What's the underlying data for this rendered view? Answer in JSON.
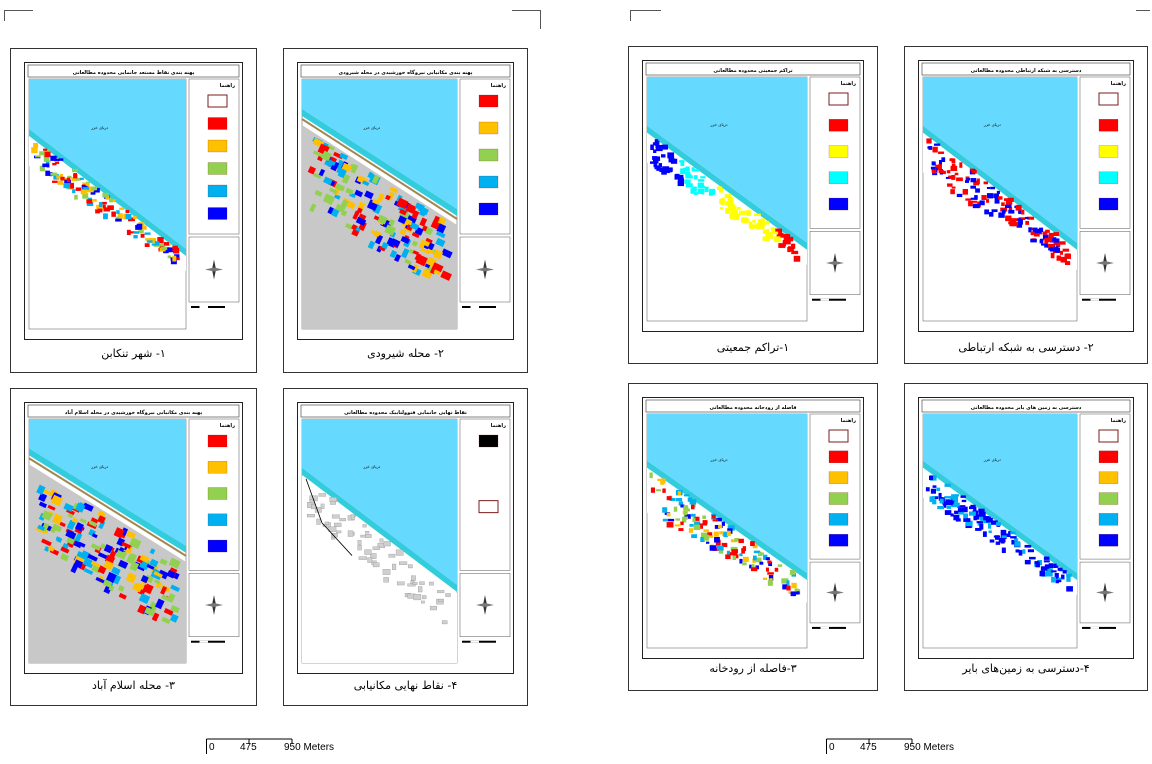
{
  "maps": [
    {
      "id": "tonekabon",
      "caption": "۱- شهر تنکابن",
      "title": "پهنه بندی نقاط مستعد جانمایی محدوده مطالعاتی",
      "legend_title": "راهنما",
      "style": "dots",
      "legend_colors": [
        "#ffffff",
        "#ff0000",
        "#ffc000",
        "#92d050",
        "#00b0f0",
        "#0000ff"
      ]
    },
    {
      "id": "shirudi",
      "caption": "۲- محله شیرودی",
      "title": "پهنه بندی مکانیابی نیروگاه خورشیدی در محله شیرودی",
      "legend_title": "راهنما",
      "style": "zoomA",
      "legend_colors": [
        "#ff0000",
        "#ffc000",
        "#92d050",
        "#00b0f0",
        "#0000ff"
      ]
    },
    {
      "id": "eslamabad",
      "caption": "۳- محله اسلام آباد",
      "title": "پهنه بندی مکانیابی نیروگاه خورشیدی در محله اسلام آباد",
      "legend_title": "راهنما",
      "style": "zoomB",
      "legend_colors": [
        "#ff0000",
        "#ffc000",
        "#92d050",
        "#00b0f0",
        "#0000ff"
      ]
    },
    {
      "id": "final",
      "caption": "۴- نقاط نهایی مکانیابی",
      "title": "نقاط نهایی جانمایی فتوولتاییک محدوده مطالعاتی",
      "legend_title": "راهنما",
      "style": "final",
      "legend_colors": [
        "#000000",
        "#ffffff"
      ]
    },
    {
      "id": "density",
      "caption": "۱-تراکم جمعیتی",
      "title": "تراکم جمعیتی محدوده مطالعاتی",
      "legend_title": "راهنما",
      "style": "density",
      "legend_colors": [
        "#ffffff",
        "#ff0000",
        "#ffff00",
        "#00ffff",
        "#0000ff"
      ]
    },
    {
      "id": "network",
      "caption": "۲- دسترسی به شبکه ارتباطی",
      "title": "دسترسی به شبکه ارتباطی محدوده مطالعاتی",
      "legend_title": "راهنما",
      "style": "network",
      "legend_colors": [
        "#ffffff",
        "#ff0000",
        "#ffff00",
        "#00ffff",
        "#0000ff"
      ]
    },
    {
      "id": "river",
      "caption": "۳-فاصله از رودخانه",
      "title": "فاصله از رودخانه محدوده مطالعاتی",
      "legend_title": "راهنما",
      "style": "river",
      "legend_colors": [
        "#ffffff",
        "#ff0000",
        "#ffc000",
        "#92d050",
        "#00b0f0",
        "#0000ff"
      ]
    },
    {
      "id": "barren",
      "caption": "۴-دسترسی به زمین‌های بایر",
      "title": "دسترسی به زمین های بایر محدوده مطالعاتی",
      "legend_title": "راهنما",
      "style": "barren",
      "legend_colors": [
        "#ffffff",
        "#ff0000",
        "#ffc000",
        "#92d050",
        "#00b0f0",
        "#0000ff"
      ]
    }
  ],
  "scalebars": [
    {
      "zero": "0",
      "mid": "475",
      "end": "950 Meters"
    },
    {
      "zero": "0",
      "mid": "475",
      "end": "950 Meters"
    }
  ],
  "colors": {
    "sea": "#66d9ff",
    "coast": "#33ccdd",
    "urban": "#c8c8c8",
    "road": "#a08850"
  }
}
